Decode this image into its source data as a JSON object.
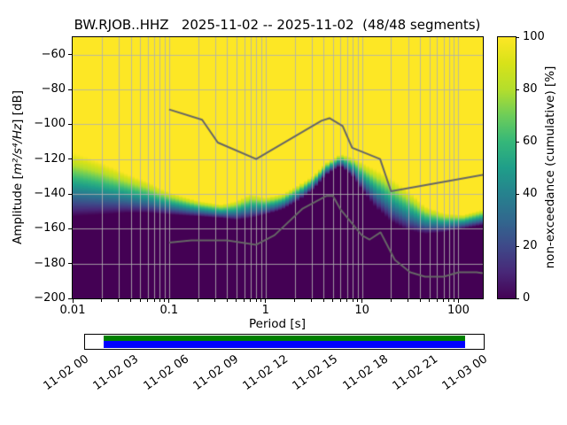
{
  "figure": {
    "background": "#ffffff"
  },
  "chart_data": {
    "type": "heatmap",
    "title": "BW.RJOB..HHZ   2025-11-02 -- 2025-11-02  (48/48 segments)",
    "xlabel": "Period [s]",
    "ylabel": {
      "prefix": "Amplitude [",
      "math": "m²/s⁴/Hz",
      "suffix": "] [dB]"
    },
    "xscale": "log",
    "xlim": [
      0.01,
      179
    ],
    "ylim": [
      -200,
      -50
    ],
    "xticks": [
      {
        "v": 0.01,
        "label": "0.01"
      },
      {
        "v": 0.1,
        "label": "0.1"
      },
      {
        "v": 1,
        "label": "1"
      },
      {
        "v": 10,
        "label": "10"
      },
      {
        "v": 100,
        "label": "100"
      }
    ],
    "yticks": [
      {
        "v": -60,
        "label": "−60"
      },
      {
        "v": -80,
        "label": "−80"
      },
      {
        "v": -100,
        "label": "−100"
      },
      {
        "v": -120,
        "label": "−120"
      },
      {
        "v": -140,
        "label": "−140"
      },
      {
        "v": -160,
        "label": "−160"
      },
      {
        "v": -180,
        "label": "−180"
      },
      {
        "v": -200,
        "label": "−200"
      }
    ],
    "grid": {
      "color": "rgba(176,176,176,0.85)",
      "minor_x": true
    },
    "period_bin_decades": 0.038,
    "colormap": [
      [
        0.0,
        "#440154"
      ],
      [
        0.1,
        "#482878"
      ],
      [
        0.2,
        "#3e4989"
      ],
      [
        0.3,
        "#31688e"
      ],
      [
        0.4,
        "#26828e"
      ],
      [
        0.5,
        "#1f9e89"
      ],
      [
        0.6,
        "#35b779"
      ],
      [
        0.7,
        "#6dcd59"
      ],
      [
        0.8,
        "#b4de2c"
      ],
      [
        0.9,
        "#d8e219"
      ],
      [
        1.0,
        "#fde725"
      ]
    ],
    "colorbar": {
      "label": "non-exceedance (cumulative) [%]",
      "min": 0,
      "max": 100,
      "ticks": [
        {
          "v": 0,
          "label": "0"
        },
        {
          "v": 20,
          "label": "20"
        },
        {
          "v": 40,
          "label": "40"
        },
        {
          "v": 60,
          "label": "60"
        },
        {
          "v": 80,
          "label": "80"
        },
        {
          "v": 100,
          "label": "100"
        }
      ]
    },
    "distribution": {
      "periods": [
        0.01,
        0.02,
        0.035,
        0.06,
        0.1,
        0.2,
        0.35,
        0.5,
        0.7,
        1.0,
        1.5,
        2.2,
        3.2,
        4.5,
        6.0,
        8.0,
        10,
        14,
        20,
        30,
        45,
        70,
        110,
        179
      ],
      "psd_min": [
        -153,
        -152,
        -151,
        -151,
        -152,
        -153,
        -154,
        -155,
        -154,
        -152,
        -149,
        -144,
        -137,
        -128,
        -124,
        -130,
        -138,
        -148,
        -156,
        -161,
        -163,
        -162,
        -160,
        -158
      ],
      "psd_max": [
        -116,
        -122,
        -128,
        -133,
        -139,
        -144,
        -146,
        -144,
        -140,
        -142,
        -140,
        -135,
        -129,
        -121,
        -117,
        -119,
        -122,
        -126,
        -131,
        -138,
        -147,
        -151,
        -152,
        -149
      ]
    },
    "noise_models": {
      "color": "#666666",
      "high_model": {
        "periods": [
          0.1,
          0.22,
          0.32,
          0.8,
          3.8,
          4.6,
          6.3,
          7.9,
          15.4,
          20.0,
          179.0
        ],
        "psd": [
          -91.5,
          -97.4,
          -110.5,
          -120.0,
          -98.0,
          -96.5,
          -101.0,
          -113.5,
          -120.0,
          -138.5,
          -129.0
        ]
      },
      "low_model": {
        "periods": [
          0.1,
          0.17,
          0.4,
          0.8,
          1.24,
          2.4,
          4.3,
          5.0,
          6.0,
          10.0,
          12.0,
          15.6,
          21.9,
          31.6,
          45.0,
          70.0,
          101.0,
          154.0,
          179.0
        ],
        "psd": [
          -168.0,
          -166.7,
          -166.7,
          -169.2,
          -163.7,
          -148.6,
          -141.1,
          -141.1,
          -149.0,
          -163.8,
          -166.2,
          -162.1,
          -177.9,
          -185.0,
          -187.5,
          -187.5,
          -185.0,
          -185.0,
          -185.5
        ]
      }
    }
  },
  "timeline": {
    "labels": [
      "11-02 00",
      "11-02 03",
      "11-02 06",
      "11-02 09",
      "11-02 12",
      "11-02 15",
      "11-02 18",
      "11-02 21",
      "11-03 00"
    ],
    "colors": {
      "top": "#008000",
      "bottom": "#0000ff"
    },
    "coverage": {
      "start_frac": 0.047,
      "end_frac": 0.953
    }
  }
}
